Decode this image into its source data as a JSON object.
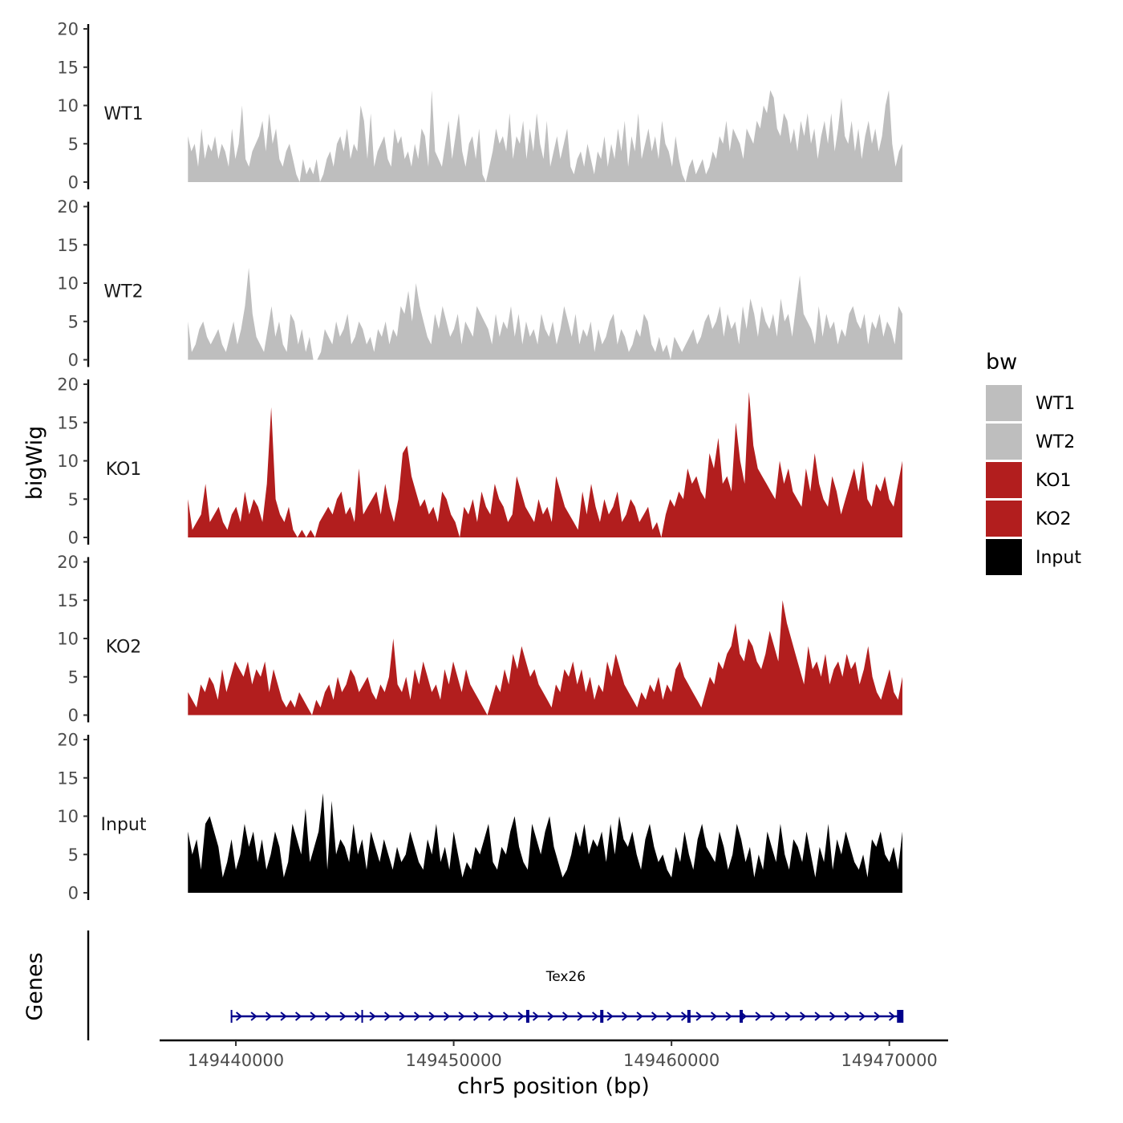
{
  "chart_data": {
    "type": "area",
    "ylabel": "bigWig",
    "xlabel": "chr5 position (bp)",
    "genes_label": "Genes",
    "xlim": [
      149436500,
      149472700
    ],
    "data_xrange": [
      149437800,
      149470600
    ],
    "x_ticks": [
      149440000,
      149450000,
      149460000,
      149470000
    ],
    "x_tick_labels": [
      "149440000",
      "149450000",
      "149460000",
      "149470000"
    ],
    "ylim": [
      0,
      20
    ],
    "y_ticks": [
      0,
      5,
      10,
      15,
      20
    ],
    "y_tick_labels": [
      "0",
      "5",
      "10",
      "15",
      "20"
    ],
    "legend": {
      "title": "bw",
      "entries": [
        {
          "label": "WT1",
          "color": "#bebebe"
        },
        {
          "label": "WT2",
          "color": "#bebebe"
        },
        {
          "label": "KO1",
          "color": "#b21e1e"
        },
        {
          "label": "KO2",
          "color": "#b21e1e"
        },
        {
          "label": "Input",
          "color": "#000000"
        }
      ]
    },
    "series": [
      {
        "name": "WT1",
        "color": "#bebebe",
        "values": [
          6,
          4,
          5,
          2,
          7,
          3,
          5,
          4,
          6,
          3,
          5,
          4,
          2,
          7,
          3,
          5,
          10,
          3,
          2,
          4,
          5,
          6,
          8,
          4,
          9,
          5,
          7,
          3,
          2,
          4,
          5,
          3,
          1,
          0,
          3,
          1,
          2,
          1,
          3,
          0,
          1,
          3,
          4,
          2,
          5,
          6,
          4,
          7,
          3,
          5,
          4,
          10,
          8,
          3,
          9,
          2,
          4,
          5,
          6,
          3,
          2,
          7,
          5,
          6,
          3,
          4,
          2,
          5,
          3,
          7,
          6,
          2,
          12,
          4,
          3,
          2,
          5,
          8,
          3,
          6,
          9,
          4,
          2,
          5,
          6,
          3,
          7,
          1,
          0,
          2,
          4,
          7,
          5,
          6,
          4,
          9,
          3,
          6,
          5,
          8,
          3,
          7,
          4,
          9,
          5,
          3,
          8,
          2,
          4,
          6,
          3,
          5,
          7,
          2,
          1,
          3,
          4,
          2,
          5,
          3,
          1,
          4,
          3,
          6,
          2,
          5,
          3,
          7,
          4,
          8,
          2,
          6,
          4,
          9,
          3,
          5,
          7,
          4,
          6,
          3,
          8,
          5,
          4,
          2,
          6,
          3,
          1,
          0,
          2,
          3,
          1,
          2,
          3,
          1,
          2,
          4,
          3,
          6,
          5,
          8,
          4,
          7,
          6,
          5,
          3,
          7,
          6,
          5,
          8,
          7,
          10,
          9,
          12,
          11,
          7,
          6,
          9,
          8,
          5,
          7,
          4,
          8,
          6,
          9,
          5,
          7,
          3,
          6,
          8,
          5,
          9,
          4,
          7,
          11,
          6,
          5,
          8,
          4,
          7,
          3,
          6,
          8,
          5,
          7,
          4,
          6,
          10,
          12,
          5,
          2,
          4,
          5
        ]
      },
      {
        "name": "WT2",
        "color": "#bebebe",
        "values": [
          5,
          1,
          2,
          4,
          5,
          3,
          2,
          3,
          4,
          2,
          1,
          3,
          5,
          2,
          4,
          7,
          12,
          6,
          3,
          2,
          1,
          4,
          7,
          3,
          5,
          2,
          1,
          6,
          5,
          2,
          4,
          1,
          3,
          0,
          0,
          1,
          4,
          3,
          2,
          5,
          3,
          4,
          6,
          2,
          3,
          5,
          4,
          2,
          3,
          1,
          4,
          3,
          5,
          2,
          4,
          3,
          7,
          6,
          9,
          5,
          10,
          7,
          5,
          3,
          2,
          6,
          4,
          7,
          5,
          3,
          4,
          6,
          2,
          5,
          4,
          3,
          7,
          6,
          5,
          4,
          2,
          6,
          3,
          5,
          4,
          7,
          3,
          6,
          2,
          5,
          3,
          4,
          2,
          6,
          4,
          3,
          5,
          2,
          4,
          7,
          5,
          3,
          6,
          2,
          4,
          3,
          5,
          1,
          4,
          2,
          3,
          5,
          6,
          2,
          4,
          3,
          1,
          2,
          4,
          3,
          6,
          5,
          2,
          1,
          3,
          1,
          2,
          0,
          3,
          2,
          1,
          2,
          3,
          4,
          2,
          3,
          5,
          6,
          4,
          5,
          7,
          3,
          6,
          4,
          5,
          2,
          7,
          4,
          8,
          6,
          3,
          7,
          5,
          4,
          6,
          3,
          8,
          5,
          6,
          3,
          7,
          11,
          6,
          5,
          4,
          2,
          7,
          3,
          6,
          4,
          5,
          2,
          4,
          3,
          6,
          7,
          5,
          4,
          6,
          2,
          5,
          4,
          6,
          3,
          5,
          4,
          2,
          7,
          6
        ]
      },
      {
        "name": "KO1",
        "color": "#b21e1e",
        "values": [
          5,
          1,
          2,
          3,
          7,
          2,
          3,
          4,
          2,
          1,
          3,
          4,
          2,
          6,
          3,
          5,
          4,
          2,
          7,
          17,
          5,
          3,
          2,
          4,
          1,
          0,
          1,
          0,
          1,
          0,
          2,
          3,
          4,
          3,
          5,
          6,
          3,
          4,
          2,
          9,
          3,
          4,
          5,
          6,
          3,
          7,
          4,
          2,
          5,
          11,
          12,
          8,
          6,
          4,
          5,
          3,
          4,
          2,
          6,
          5,
          3,
          2,
          0,
          4,
          3,
          5,
          2,
          6,
          4,
          3,
          7,
          5,
          4,
          2,
          3,
          8,
          6,
          4,
          3,
          2,
          5,
          3,
          4,
          2,
          8,
          6,
          4,
          3,
          2,
          1,
          6,
          3,
          7,
          4,
          2,
          5,
          3,
          4,
          6,
          2,
          3,
          5,
          4,
          2,
          3,
          4,
          1,
          2,
          0,
          3,
          5,
          4,
          6,
          5,
          9,
          7,
          8,
          6,
          5,
          11,
          9,
          13,
          7,
          8,
          6,
          15,
          10,
          7,
          19,
          12,
          9,
          8,
          7,
          6,
          5,
          10,
          7,
          9,
          6,
          5,
          4,
          9,
          6,
          11,
          7,
          5,
          4,
          8,
          6,
          3,
          5,
          7,
          9,
          6,
          10,
          5,
          4,
          7,
          6,
          8,
          5,
          4,
          7,
          10
        ]
      },
      {
        "name": "KO2",
        "color": "#b21e1e",
        "values": [
          3,
          2,
          1,
          4,
          3,
          5,
          4,
          2,
          6,
          3,
          5,
          7,
          6,
          5,
          7,
          4,
          6,
          5,
          7,
          3,
          6,
          4,
          2,
          1,
          2,
          1,
          3,
          2,
          1,
          0,
          2,
          1,
          3,
          4,
          2,
          5,
          3,
          4,
          6,
          5,
          3,
          4,
          5,
          3,
          2,
          4,
          3,
          5,
          10,
          4,
          3,
          5,
          2,
          6,
          4,
          7,
          5,
          3,
          4,
          2,
          6,
          4,
          7,
          5,
          3,
          6,
          4,
          3,
          2,
          1,
          0,
          2,
          4,
          3,
          6,
          4,
          8,
          6,
          9,
          7,
          5,
          6,
          4,
          3,
          2,
          1,
          4,
          3,
          6,
          5,
          7,
          4,
          6,
          3,
          5,
          2,
          4,
          3,
          7,
          5,
          8,
          6,
          4,
          3,
          2,
          1,
          3,
          2,
          4,
          3,
          5,
          2,
          4,
          3,
          6,
          7,
          5,
          4,
          3,
          2,
          1,
          3,
          5,
          4,
          7,
          6,
          8,
          9,
          12,
          8,
          7,
          10,
          9,
          7,
          6,
          8,
          11,
          9,
          7,
          15,
          12,
          10,
          8,
          6,
          4,
          9,
          6,
          7,
          5,
          8,
          4,
          6,
          7,
          5,
          8,
          6,
          7,
          4,
          6,
          9,
          5,
          3,
          2,
          4,
          6,
          3,
          2,
          5
        ]
      },
      {
        "name": "Input",
        "color": "#000000",
        "values": [
          8,
          5,
          7,
          3,
          9,
          10,
          8,
          6,
          2,
          4,
          7,
          3,
          5,
          9,
          6,
          8,
          4,
          7,
          3,
          5,
          8,
          6,
          2,
          4,
          9,
          7,
          5,
          11,
          4,
          6,
          8,
          13,
          3,
          12,
          5,
          7,
          6,
          4,
          9,
          5,
          7,
          3,
          8,
          6,
          4,
          7,
          5,
          3,
          6,
          4,
          5,
          8,
          6,
          4,
          3,
          7,
          5,
          9,
          4,
          6,
          3,
          8,
          5,
          2,
          4,
          3,
          6,
          5,
          7,
          9,
          4,
          3,
          6,
          5,
          8,
          10,
          6,
          4,
          3,
          9,
          7,
          5,
          8,
          10,
          6,
          4,
          2,
          3,
          5,
          8,
          6,
          9,
          5,
          7,
          6,
          8,
          4,
          9,
          5,
          10,
          7,
          6,
          8,
          5,
          3,
          7,
          9,
          6,
          4,
          5,
          3,
          2,
          6,
          4,
          8,
          5,
          3,
          7,
          9,
          6,
          5,
          4,
          8,
          6,
          3,
          5,
          9,
          7,
          4,
          6,
          2,
          5,
          3,
          8,
          6,
          4,
          9,
          5,
          3,
          7,
          6,
          4,
          8,
          5,
          2,
          6,
          4,
          9,
          3,
          7,
          5,
          8,
          6,
          4,
          3,
          5,
          2,
          7,
          6,
          8,
          5,
          4,
          6,
          3,
          8
        ]
      }
    ],
    "gene": {
      "name": "Tex26",
      "start": 149439800,
      "end": 149470500,
      "strand": "+",
      "color": "#00008b",
      "exons": [
        149439800,
        149445800,
        149453400,
        149456800,
        149460800,
        149463200,
        149470500
      ]
    }
  }
}
